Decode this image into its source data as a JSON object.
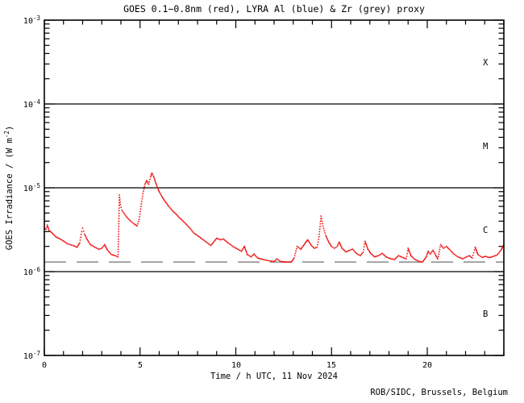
{
  "credit": "ROB/SIDC, Brussels, Belgium",
  "chart_data": {
    "type": "line",
    "title": "GOES 0.1−0.8nm (red), LYRA Al (blue) & Zr (grey) proxy",
    "xlabel": "Time / h UTC, 11 Nov 2024",
    "ylabel": "GOES Irradiance / (W m-2)",
    "ylabel_parts": {
      "pre": "GOES Irradiance / (W m",
      "sup": "-2",
      "post": ")"
    },
    "x_axis": {
      "min": 0,
      "max": 24,
      "minor_step": 1,
      "major_step": 5,
      "tick_labels": [
        "0",
        "5",
        "10",
        "15",
        "20"
      ],
      "tick_values": [
        0,
        5,
        10,
        15,
        20
      ]
    },
    "y_axis": {
      "scale": "log",
      "min": 1e-07,
      "max": 0.001,
      "tick_values": [
        0.001,
        0.0001,
        1e-05,
        1e-06,
        1e-07
      ]
    },
    "y_tick_parts": [
      {
        "base": "10",
        "exp": "-3"
      },
      {
        "base": "10",
        "exp": "-4"
      },
      {
        "base": "10",
        "exp": "-5"
      },
      {
        "base": "10",
        "exp": "-6"
      },
      {
        "base": "10",
        "exp": "-7"
      }
    ],
    "class_bands": [
      {
        "label": "X",
        "min": 0.0001,
        "max": 0.001
      },
      {
        "label": "M",
        "min": 1e-05,
        "max": 0.0001
      },
      {
        "label": "C",
        "min": 1e-06,
        "max": 1e-05
      },
      {
        "label": "B",
        "min": 1e-07,
        "max": 1e-06
      }
    ],
    "flare_class_boundaries": [
      0.0001,
      1e-05,
      1e-06
    ],
    "reference_line": {
      "name": "proxy-background-level",
      "value": 1.3e-06,
      "style": "dashed",
      "color": "#9a9a9a"
    },
    "grid": false,
    "legend": "none (series identified by color in title)",
    "series": [
      {
        "name": "GOES 0.1-0.8nm",
        "color": "#ee1111",
        "points": [
          [
            0,
            3.3e-06
          ],
          [
            0.1,
            3.2e-06
          ],
          [
            0.15,
            3.6e-06
          ],
          [
            0.25,
            3.1e-06
          ],
          [
            0.4,
            2.9e-06
          ],
          [
            0.6,
            2.6e-06
          ],
          [
            0.9,
            2.4e-06
          ],
          [
            1.2,
            2.15e-06
          ],
          [
            1.5,
            2.05e-06
          ],
          [
            1.7,
            1.95e-06
          ],
          [
            1.85,
            2.2e-06
          ],
          [
            1.95,
            3e-06
          ],
          [
            2.0,
            3.3e-06
          ],
          [
            2.1,
            2.8e-06
          ],
          [
            2.2,
            2.5e-06
          ],
          [
            2.4,
            2.1e-06
          ],
          [
            2.65,
            1.95e-06
          ],
          [
            2.85,
            1.85e-06
          ],
          [
            3.0,
            1.9e-06
          ],
          [
            3.15,
            2.1e-06
          ],
          [
            3.3,
            1.8e-06
          ],
          [
            3.5,
            1.6e-06
          ],
          [
            3.7,
            1.55e-06
          ],
          [
            3.85,
            1.5e-06
          ],
          [
            3.88,
            3e-06
          ],
          [
            3.92,
            8.2e-06
          ],
          [
            3.97,
            6.3e-06
          ],
          [
            4.05,
            5.4e-06
          ],
          [
            4.15,
            5e-06
          ],
          [
            4.3,
            4.5e-06
          ],
          [
            4.5,
            4e-06
          ],
          [
            4.7,
            3.7e-06
          ],
          [
            4.85,
            3.5e-06
          ],
          [
            4.95,
            4.2e-06
          ],
          [
            5.05,
            6e-06
          ],
          [
            5.15,
            8.5e-06
          ],
          [
            5.25,
            1.1e-05
          ],
          [
            5.35,
            1.22e-05
          ],
          [
            5.45,
            1.1e-05
          ],
          [
            5.55,
            1.35e-05
          ],
          [
            5.62,
            1.5e-05
          ],
          [
            5.7,
            1.38e-05
          ],
          [
            5.8,
            1.18e-05
          ],
          [
            5.9,
            1.02e-05
          ],
          [
            6.0,
            9e-06
          ],
          [
            6.15,
            7.8e-06
          ],
          [
            6.3,
            6.9e-06
          ],
          [
            6.5,
            6e-06
          ],
          [
            6.7,
            5.3e-06
          ],
          [
            6.9,
            4.8e-06
          ],
          [
            7.1,
            4.3e-06
          ],
          [
            7.35,
            3.8e-06
          ],
          [
            7.6,
            3.3e-06
          ],
          [
            7.8,
            2.9e-06
          ],
          [
            8.1,
            2.6e-06
          ],
          [
            8.4,
            2.3e-06
          ],
          [
            8.7,
            2.05e-06
          ],
          [
            9.0,
            2.5e-06
          ],
          [
            9.2,
            2.4e-06
          ],
          [
            9.35,
            2.45e-06
          ],
          [
            9.6,
            2.2e-06
          ],
          [
            9.85,
            2e-06
          ],
          [
            10.1,
            1.85e-06
          ],
          [
            10.3,
            1.75e-06
          ],
          [
            10.45,
            2e-06
          ],
          [
            10.6,
            1.6e-06
          ],
          [
            10.8,
            1.5e-06
          ],
          [
            10.95,
            1.62e-06
          ],
          [
            11.15,
            1.45e-06
          ],
          [
            11.4,
            1.4e-06
          ],
          [
            11.7,
            1.35e-06
          ],
          [
            12.0,
            1.32e-06
          ],
          [
            12.15,
            1.42e-06
          ],
          [
            12.35,
            1.32e-06
          ],
          [
            12.6,
            1.3e-06
          ],
          [
            12.9,
            1.3e-06
          ],
          [
            13.05,
            1.45e-06
          ],
          [
            13.2,
            2e-06
          ],
          [
            13.4,
            1.85e-06
          ],
          [
            13.6,
            2.15e-06
          ],
          [
            13.75,
            2.4e-06
          ],
          [
            13.95,
            2.05e-06
          ],
          [
            14.1,
            1.9e-06
          ],
          [
            14.25,
            1.95e-06
          ],
          [
            14.35,
            2.6e-06
          ],
          [
            14.45,
            4.6e-06
          ],
          [
            14.55,
            3.5e-06
          ],
          [
            14.7,
            2.7e-06
          ],
          [
            14.85,
            2.25e-06
          ],
          [
            15.0,
            2e-06
          ],
          [
            15.15,
            1.9e-06
          ],
          [
            15.3,
            2e-06
          ],
          [
            15.4,
            2.25e-06
          ],
          [
            15.55,
            1.9e-06
          ],
          [
            15.75,
            1.72e-06
          ],
          [
            15.95,
            1.8e-06
          ],
          [
            16.1,
            1.85e-06
          ],
          [
            16.3,
            1.65e-06
          ],
          [
            16.5,
            1.55e-06
          ],
          [
            16.65,
            1.7e-06
          ],
          [
            16.75,
            2.3e-06
          ],
          [
            16.9,
            1.85e-06
          ],
          [
            17.05,
            1.65e-06
          ],
          [
            17.25,
            1.5e-06
          ],
          [
            17.45,
            1.55e-06
          ],
          [
            17.65,
            1.65e-06
          ],
          [
            17.85,
            1.5e-06
          ],
          [
            18.1,
            1.42e-06
          ],
          [
            18.3,
            1.4e-06
          ],
          [
            18.5,
            1.55e-06
          ],
          [
            18.7,
            1.48e-06
          ],
          [
            18.9,
            1.42e-06
          ],
          [
            19.0,
            1.9e-06
          ],
          [
            19.15,
            1.55e-06
          ],
          [
            19.35,
            1.4e-06
          ],
          [
            19.55,
            1.33e-06
          ],
          [
            19.75,
            1.3e-06
          ],
          [
            19.95,
            1.5e-06
          ],
          [
            20.05,
            1.75e-06
          ],
          [
            20.15,
            1.62e-06
          ],
          [
            20.3,
            1.8e-06
          ],
          [
            20.45,
            1.55e-06
          ],
          [
            20.55,
            1.42e-06
          ],
          [
            20.7,
            2.1e-06
          ],
          [
            20.85,
            1.9e-06
          ],
          [
            21.0,
            2e-06
          ],
          [
            21.15,
            1.85e-06
          ],
          [
            21.35,
            1.65e-06
          ],
          [
            21.6,
            1.5e-06
          ],
          [
            21.85,
            1.42e-06
          ],
          [
            22.05,
            1.5e-06
          ],
          [
            22.2,
            1.55e-06
          ],
          [
            22.35,
            1.45e-06
          ],
          [
            22.5,
            1.95e-06
          ],
          [
            22.65,
            1.6e-06
          ],
          [
            22.85,
            1.48e-06
          ],
          [
            23.05,
            1.52e-06
          ],
          [
            23.25,
            1.47e-06
          ],
          [
            23.45,
            1.52e-06
          ],
          [
            23.65,
            1.58e-06
          ],
          [
            23.85,
            1.8e-06
          ],
          [
            24.0,
            2.1e-06
          ]
        ]
      }
    ]
  }
}
